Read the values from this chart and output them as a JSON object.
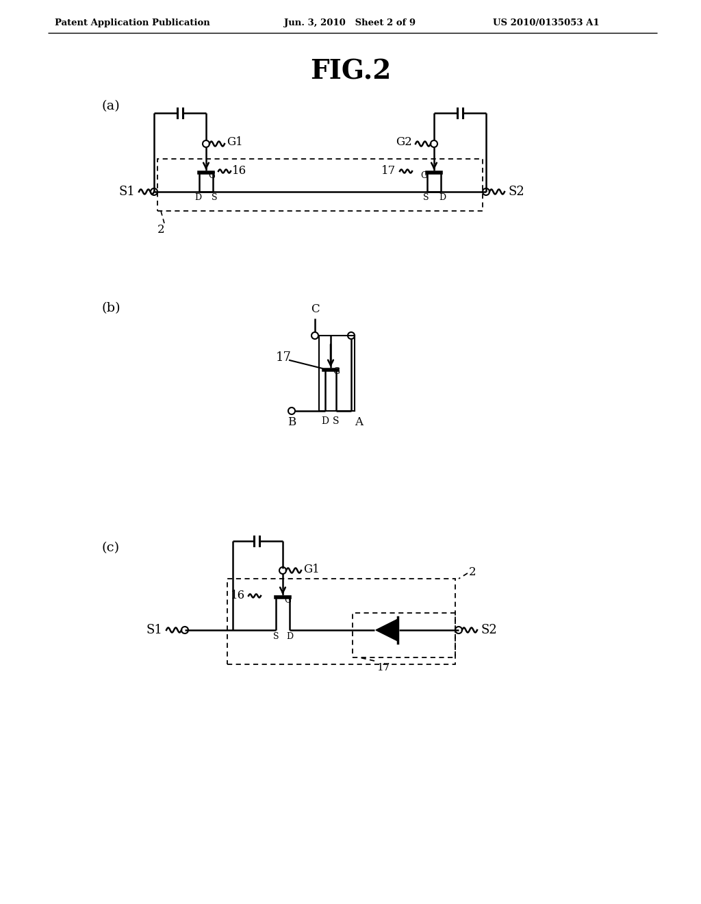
{
  "header_left": "Patent Application Publication",
  "header_mid": "Jun. 3, 2010   Sheet 2 of 9",
  "header_right": "US 2010/0135053 A1",
  "title": "FIG.2",
  "bg_color": "#ffffff"
}
